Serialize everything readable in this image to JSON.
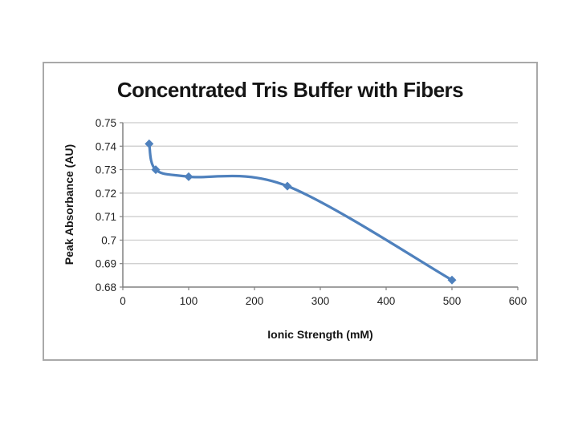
{
  "page": {
    "background_color": "#ffffff"
  },
  "chart_data": {
    "type": "line",
    "title": "Concentrated Tris Buffer with Fibers",
    "xlabel": "Ionic Strength (mM)",
    "ylabel": "Peak Absorbance (AU)",
    "x": [
      40,
      50,
      100,
      250,
      500
    ],
    "y": [
      0.741,
      0.73,
      0.727,
      0.723,
      0.683
    ],
    "xlim": [
      0,
      600
    ],
    "ylim": [
      0.68,
      0.75
    ],
    "x_ticks": [
      0,
      100,
      200,
      300,
      400,
      500,
      600
    ],
    "x_tick_labels": [
      "0",
      "100",
      "200",
      "300",
      "400",
      "500",
      "600"
    ],
    "y_ticks": [
      0.68,
      0.69,
      0.7,
      0.71,
      0.72,
      0.73,
      0.74,
      0.75
    ],
    "y_tick_labels": [
      "0.68",
      "0.69",
      "0.7",
      "0.71",
      "0.72",
      "0.73",
      "0.74",
      "0.75"
    ],
    "grid": "horizontal",
    "legend": false,
    "line_style": "smooth",
    "marker": "diamond",
    "colors": {
      "series": "#4f81bd",
      "gridline": "#c9c9c9",
      "axis": "#808080",
      "tick_text": "#1f1f1f",
      "frame_border": "#a9a9a9",
      "title_text": "#151515"
    }
  }
}
